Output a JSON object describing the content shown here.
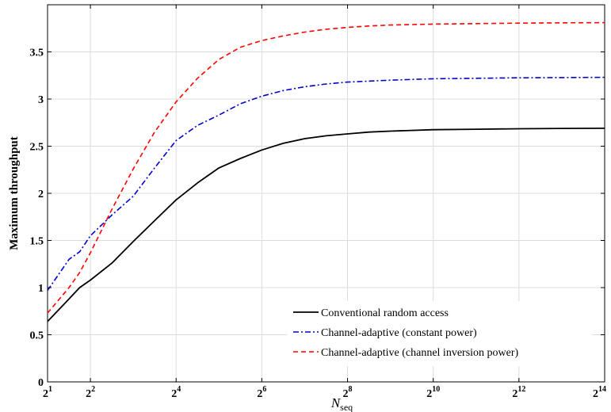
{
  "chart_data": {
    "type": "line",
    "title": "",
    "xlabel": "N",
    "xlabel_sub": "seq",
    "ylabel": "Maximum throughput",
    "xscale": "log2",
    "xlim": [
      2,
      16384
    ],
    "ylim": [
      0,
      4
    ],
    "x_ticks": [
      {
        "base": "2",
        "exp": "1",
        "value": 2
      },
      {
        "base": "2",
        "exp": "2",
        "value": 4
      },
      {
        "base": "2",
        "exp": "4",
        "value": 16
      },
      {
        "base": "2",
        "exp": "6",
        "value": 64
      },
      {
        "base": "2",
        "exp": "8",
        "value": 256
      },
      {
        "base": "2",
        "exp": "10",
        "value": 1024
      },
      {
        "base": "2",
        "exp": "12",
        "value": 4096
      },
      {
        "base": "2",
        "exp": "14",
        "value": 16384
      }
    ],
    "y_ticks": [
      "0",
      "0.5",
      "1",
      "1.5",
      "2",
      "2.5",
      "3",
      "3.5"
    ],
    "y_tick_values": [
      0,
      0.5,
      1,
      1.5,
      2,
      2.5,
      3,
      3.5
    ],
    "grid": true,
    "legend_position": "bottom-right",
    "series": [
      {
        "name": "Conventional random access",
        "color": "#000000",
        "style": "solid",
        "x": [
          2,
          2.83,
          3.36,
          4,
          5.66,
          8,
          11.3,
          16,
          22.6,
          32,
          45.3,
          64,
          90.5,
          128,
          181,
          256,
          362,
          512,
          1024,
          2048,
          4096,
          8192,
          16384
        ],
        "y": [
          0.64,
          0.88,
          1.0,
          1.08,
          1.26,
          1.49,
          1.71,
          1.93,
          2.11,
          2.27,
          2.37,
          2.46,
          2.53,
          2.58,
          2.61,
          2.63,
          2.65,
          2.66,
          2.675,
          2.68,
          2.685,
          2.688,
          2.69
        ]
      },
      {
        "name": "Channel-adaptive (constant power)",
        "color": "#0000cc",
        "style": "dashdot",
        "x": [
          2,
          2.83,
          3.36,
          4,
          5.66,
          8,
          11.3,
          16,
          22.6,
          32,
          45.3,
          64,
          90.5,
          128,
          181,
          256,
          362,
          512,
          1024,
          2048,
          4096,
          8192,
          16384
        ],
        "y": [
          0.97,
          1.3,
          1.38,
          1.55,
          1.77,
          1.97,
          2.27,
          2.56,
          2.72,
          2.83,
          2.95,
          3.03,
          3.09,
          3.13,
          3.16,
          3.18,
          3.19,
          3.2,
          3.215,
          3.22,
          3.225,
          3.228,
          3.23
        ]
      },
      {
        "name": "Channel-adaptive (channel inversion power)",
        "color": "#ff0000",
        "style": "dashed",
        "x": [
          2,
          2.83,
          3.36,
          4,
          5.66,
          8,
          11.3,
          16,
          22.6,
          32,
          45.3,
          64,
          90.5,
          128,
          181,
          256,
          362,
          512,
          1024,
          2048,
          4096,
          8192,
          16384
        ],
        "y": [
          0.73,
          1.0,
          1.16,
          1.37,
          1.83,
          2.26,
          2.65,
          2.97,
          3.22,
          3.42,
          3.55,
          3.62,
          3.67,
          3.71,
          3.74,
          3.76,
          3.775,
          3.785,
          3.795,
          3.8,
          3.805,
          3.808,
          3.81
        ]
      }
    ]
  }
}
